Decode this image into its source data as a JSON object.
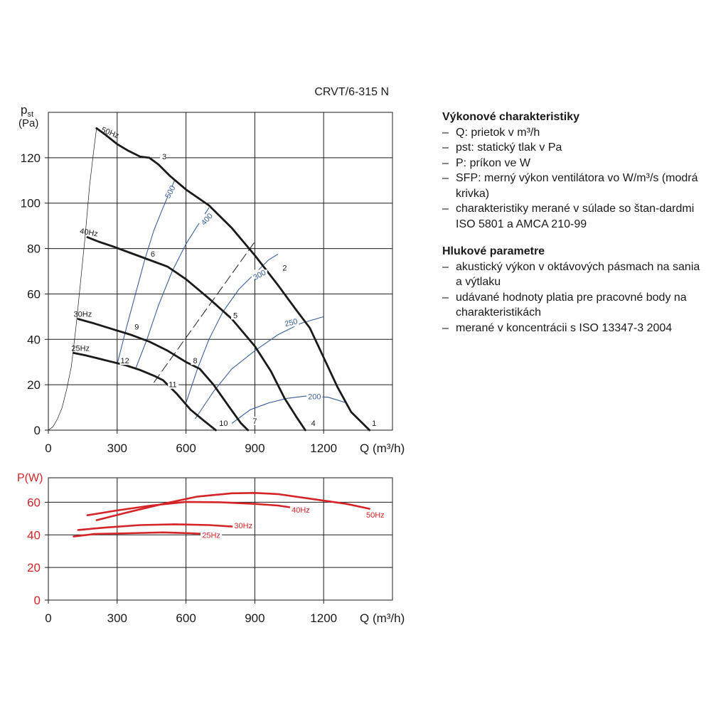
{
  "model": "CRVT/6-315 N",
  "info": {
    "perf_title": "Výkonové charakteristiky",
    "perf_items": [
      "Q: prietok v m³/h",
      "pst: statický tlak v Pa",
      "P: príkon ve W",
      "SFP: merný výkon ventilátora vo W/m³/s (modrá krivka)",
      "charakteristiky merané v súlade so štan-dardmi ISO 5801 a AMCA 210-99"
    ],
    "noise_title": "Hlukové parametre",
    "noise_items": [
      "akustický výkon v oktávových pásmach na sania a výtlaku",
      "udávané hodnoty platia pre pracovné body na charakteristikách",
      "merané v koncentrácii s ISO 13347-3 2004"
    ]
  },
  "colors": {
    "curve": "#1a1a1a",
    "sfp": "#3a5f9c",
    "power": "#d42428",
    "grid": "#1a1a1a",
    "dashed": "#1a1a1a"
  },
  "chart_data": [
    {
      "type": "line",
      "xlabel": "Q (m³/h)",
      "ylabel_main": "p",
      "ylabel_sub": "st",
      "ylabel_unit": "(Pa)",
      "xlim": [
        0,
        1500
      ],
      "ylim": [
        0,
        140
      ],
      "x_ticks": [
        0,
        300,
        600,
        900,
        1200
      ],
      "x_tick_labels": [
        "0",
        "300",
        "600",
        "900",
        "1200"
      ],
      "y_ticks": [
        0,
        20,
        40,
        60,
        80,
        100,
        120
      ],
      "y_tick_labels": [
        "0",
        "20",
        "40",
        "60",
        "80",
        "100",
        "120"
      ],
      "series": [
        {
          "name": "50Hz",
          "label": "50Hz",
          "label_at": [
            265,
            130
          ],
          "points": [
            [
              210,
              133
            ],
            [
              250,
              130
            ],
            [
              300,
              126
            ],
            [
              350,
              123
            ],
            [
              400,
              120.5
            ],
            [
              440,
              120
            ],
            [
              480,
              117
            ],
            [
              530,
              112
            ],
            [
              600,
              106
            ],
            [
              700,
              99
            ],
            [
              800,
              89
            ],
            [
              900,
              77
            ],
            [
              1000,
              64
            ],
            [
              1080,
              53
            ],
            [
              1140,
              45
            ],
            [
              1200,
              32
            ],
            [
              1260,
              19
            ],
            [
              1320,
              8
            ],
            [
              1400,
              0
            ]
          ]
        },
        {
          "name": "40Hz",
          "label": "40Hz",
          "label_at": [
            175,
            86
          ],
          "points": [
            [
              170,
              85
            ],
            [
              220,
              83
            ],
            [
              280,
              81
            ],
            [
              360,
              78
            ],
            [
              440,
              75
            ],
            [
              520,
              72
            ],
            [
              600,
              66.5
            ],
            [
              700,
              58
            ],
            [
              800,
              49
            ],
            [
              900,
              37
            ],
            [
              970,
              26
            ],
            [
              1030,
              14
            ],
            [
              1080,
              6
            ],
            [
              1120,
              0
            ]
          ]
        },
        {
          "name": "30Hz",
          "label": "30Hz",
          "label_at": [
            150,
            50
          ],
          "points": [
            [
              130,
              49
            ],
            [
              200,
              47
            ],
            [
              280,
              44.5
            ],
            [
              360,
              42
            ],
            [
              440,
              39
            ],
            [
              520,
              35
            ],
            [
              600,
              30
            ],
            [
              660,
              27
            ],
            [
              720,
              20
            ],
            [
              790,
              10
            ],
            [
              840,
              3
            ],
            [
              870,
              0
            ]
          ]
        },
        {
          "name": "25Hz",
          "label": "25Hz",
          "label_at": [
            140,
            35
          ],
          "points": [
            [
              110,
              34
            ],
            [
              160,
              33
            ],
            [
              220,
              31.5
            ],
            [
              280,
              30
            ],
            [
              340,
              28.5
            ],
            [
              400,
              26.5
            ],
            [
              460,
              24
            ],
            [
              500,
              22
            ],
            [
              560,
              16
            ],
            [
              620,
              9
            ],
            [
              680,
              4
            ],
            [
              730,
              0
            ]
          ]
        }
      ],
      "system_curve": [
        [
          0,
          0
        ],
        [
          20,
          1.5
        ],
        [
          40,
          5
        ],
        [
          60,
          10
        ],
        [
          80,
          18
        ],
        [
          100,
          28
        ],
        [
          120,
          45
        ],
        [
          140,
          65
        ],
        [
          160,
          85
        ],
        [
          180,
          108
        ],
        [
          200,
          125
        ],
        [
          210,
          133
        ]
      ],
      "sfp_curves": [
        {
          "label": "500",
          "points": [
            [
              300,
              29
            ],
            [
              340,
              45
            ],
            [
              380,
              60
            ],
            [
              420,
              75
            ],
            [
              460,
              88
            ],
            [
              500,
              98
            ],
            [
              550,
              110
            ]
          ]
        },
        {
          "label": "400",
          "points": [
            [
              380,
              27
            ],
            [
              430,
              40
            ],
            [
              480,
              55
            ],
            [
              540,
              70
            ],
            [
              600,
              82
            ],
            [
              650,
              90
            ],
            [
              700,
              98
            ]
          ]
        },
        {
          "label": "300",
          "points": [
            [
              600,
              12
            ],
            [
              650,
              27
            ],
            [
              700,
              40
            ],
            [
              760,
              52
            ],
            [
              830,
              62
            ],
            [
              900,
              69
            ],
            [
              960,
              75
            ],
            [
              1000,
              77.5
            ]
          ]
        },
        {
          "label": "250",
          "points": [
            [
              640,
              5
            ],
            [
              720,
              17
            ],
            [
              800,
              27
            ],
            [
              900,
              35
            ],
            [
              1000,
              42
            ],
            [
              1100,
              47
            ],
            [
              1200,
              50
            ]
          ]
        },
        {
          "label": "200",
          "points": [
            [
              800,
              3
            ],
            [
              880,
              9
            ],
            [
              960,
              12
            ],
            [
              1040,
              14
            ],
            [
              1120,
              15
            ],
            [
              1220,
              14.5
            ],
            [
              1300,
              12
            ]
          ]
        }
      ],
      "sfp_label_positions": [
        [
          530,
          105
        ],
        [
          690,
          93
        ],
        [
          920,
          68.5
        ],
        [
          1058,
          47.5
        ],
        [
          1160,
          14.8
        ]
      ],
      "dashed_line": [
        [
          460,
          21
        ],
        [
          900,
          83
        ]
      ],
      "work_points": [
        {
          "label": "1",
          "at": [
            1420,
            2.5
          ]
        },
        {
          "label": "2",
          "at": [
            1030,
            71
          ]
        },
        {
          "label": "3",
          "at": [
            505,
            120
          ]
        },
        {
          "label": "4",
          "at": [
            1155,
            2.5
          ]
        },
        {
          "label": "5",
          "at": [
            815,
            50
          ]
        },
        {
          "label": "6",
          "at": [
            455,
            77
          ]
        },
        {
          "label": "7",
          "at": [
            900,
            3.5
          ]
        },
        {
          "label": "8",
          "at": [
            640,
            30
          ]
        },
        {
          "label": "9",
          "at": [
            385,
            45
          ]
        },
        {
          "label": "10",
          "at": [
            760,
            2.5
          ]
        },
        {
          "label": "11",
          "at": [
            540,
            19.5
          ]
        },
        {
          "label": "12",
          "at": [
            330,
            30
          ]
        }
      ]
    },
    {
      "type": "line",
      "xlabel": "Q (m³/h)",
      "ylabel": "P(W)",
      "xlim": [
        0,
        1500
      ],
      "ylim": [
        0,
        75
      ],
      "x_ticks": [
        0,
        300,
        600,
        900,
        1200
      ],
      "x_tick_labels": [
        "0",
        "300",
        "600",
        "900",
        "1200"
      ],
      "y_ticks": [
        0,
        20,
        40,
        60
      ],
      "y_tick_labels": [
        "0",
        "20",
        "40",
        "60"
      ],
      "series": [
        {
          "name": "50Hz",
          "label": "50Hz",
          "label_at": [
            1425,
            51
          ],
          "points": [
            [
              210,
              49
            ],
            [
              350,
              54
            ],
            [
              500,
              59
            ],
            [
              650,
              63.5
            ],
            [
              800,
              65.5
            ],
            [
              900,
              65.7
            ],
            [
              1000,
              65
            ],
            [
              1150,
              62
            ],
            [
              1300,
              59
            ],
            [
              1400,
              56
            ]
          ]
        },
        {
          "name": "40Hz",
          "label": "40Hz",
          "label_at": [
            1100,
            54
          ],
          "points": [
            [
              170,
              52
            ],
            [
              300,
              55
            ],
            [
              450,
              58
            ],
            [
              600,
              60.2
            ],
            [
              750,
              60
            ],
            [
              900,
              59
            ],
            [
              1000,
              58
            ],
            [
              1100,
              56
            ]
          ]
        },
        {
          "name": "30Hz",
          "label": "30Hz",
          "label_at": [
            850,
            44.5
          ],
          "points": [
            [
              130,
              43
            ],
            [
              250,
              44.5
            ],
            [
              400,
              46
            ],
            [
              550,
              46.5
            ],
            [
              700,
              46
            ],
            [
              870,
              44.5
            ]
          ]
        },
        {
          "name": "25Hz",
          "label": "25Hz",
          "label_at": [
            710,
            38.5
          ],
          "points": [
            [
              110,
              39
            ],
            [
              200,
              40.5
            ],
            [
              350,
              41
            ],
            [
              500,
              41.5
            ],
            [
              620,
              41
            ],
            [
              730,
              40.2
            ]
          ]
        }
      ]
    }
  ]
}
